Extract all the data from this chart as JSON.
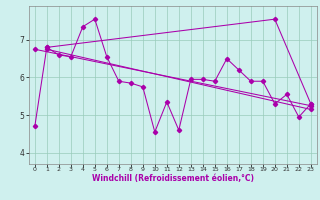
{
  "title": "",
  "xlabel": "Windchill (Refroidissement éolien,°C)",
  "bg_color": "#cff0ee",
  "line_color": "#aa00aa",
  "xlim": [
    -0.5,
    23.5
  ],
  "ylim": [
    3.7,
    7.9
  ],
  "xticks": [
    0,
    1,
    2,
    3,
    4,
    5,
    6,
    7,
    8,
    9,
    10,
    11,
    12,
    13,
    14,
    15,
    16,
    17,
    18,
    19,
    20,
    21,
    22,
    23
  ],
  "xtick_labels": [
    "0",
    "1",
    "2",
    "3",
    "4",
    "5",
    "6",
    "7",
    "8",
    "9",
    "10",
    "11",
    "12",
    "13",
    "14",
    "15",
    "16",
    "17",
    "18",
    "19",
    "20",
    "21",
    "22",
    "23"
  ],
  "yticks": [
    4,
    5,
    6,
    7
  ],
  "series1_x": [
    0,
    1,
    2,
    3,
    4,
    5,
    6,
    7,
    8,
    9,
    10,
    11,
    12,
    13,
    14,
    15,
    16,
    17,
    18,
    19,
    20,
    21,
    22,
    23
  ],
  "series1_y": [
    4.7,
    6.8,
    6.6,
    6.55,
    7.35,
    7.55,
    6.55,
    5.9,
    5.85,
    5.75,
    4.55,
    5.35,
    4.6,
    5.95,
    5.95,
    5.9,
    6.5,
    6.2,
    5.9,
    5.9,
    5.3,
    5.55,
    4.95,
    5.3
  ],
  "series2_x": [
    0,
    23
  ],
  "series2_y": [
    6.75,
    5.25
  ],
  "series3_x": [
    1,
    23
  ],
  "series3_y": [
    6.75,
    5.15
  ],
  "series4_x": [
    1,
    20,
    23
  ],
  "series4_y": [
    6.8,
    7.55,
    5.3
  ],
  "grid_color": "#99ccbb",
  "xlabel_color": "#aa00aa",
  "xlabel_fontsize": 5.5,
  "tick_fontsize_x": 4.5,
  "tick_fontsize_y": 5.5,
  "linewidth": 0.75,
  "markersize": 2.2
}
